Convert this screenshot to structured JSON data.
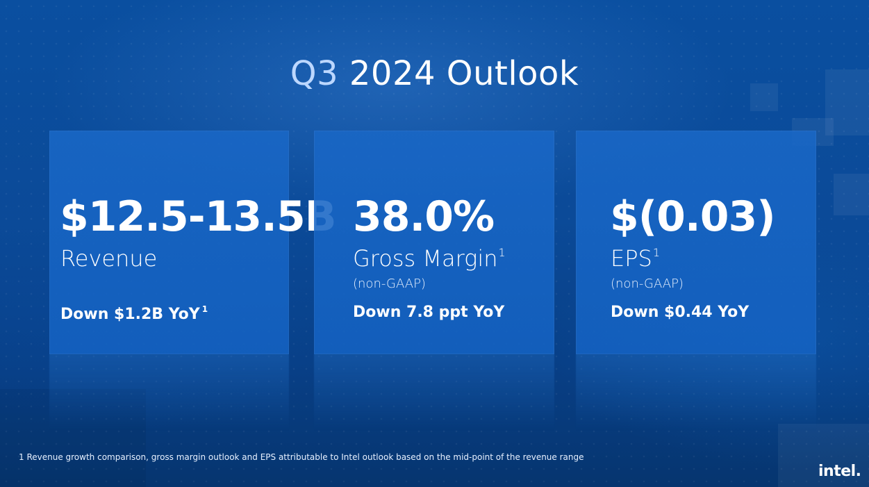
{
  "title": {
    "q3": "Q3",
    "rest": "2024 Outlook"
  },
  "cards": [
    {
      "value": "$12.5-13.5B",
      "label": "Revenue",
      "delta": "Down $1.2B YoY",
      "delta_sup": "1"
    },
    {
      "value": "38.0%",
      "label": "Gross Margin",
      "label_sup": "1",
      "sub": "(non-GAAP)",
      "delta": "Down 7.8 ppt YoY"
    },
    {
      "value": "$(0.03)",
      "label": "EPS",
      "label_sup": "1",
      "sub": "(non-GAAP)",
      "delta": "Down $0.44 YoY"
    }
  ],
  "footnote": "1 Revenue growth comparison, gross margin outlook and EPS attributable to Intel outlook based on the mid-point of the revenue range",
  "brand": {
    "logo_text": "intel."
  }
}
